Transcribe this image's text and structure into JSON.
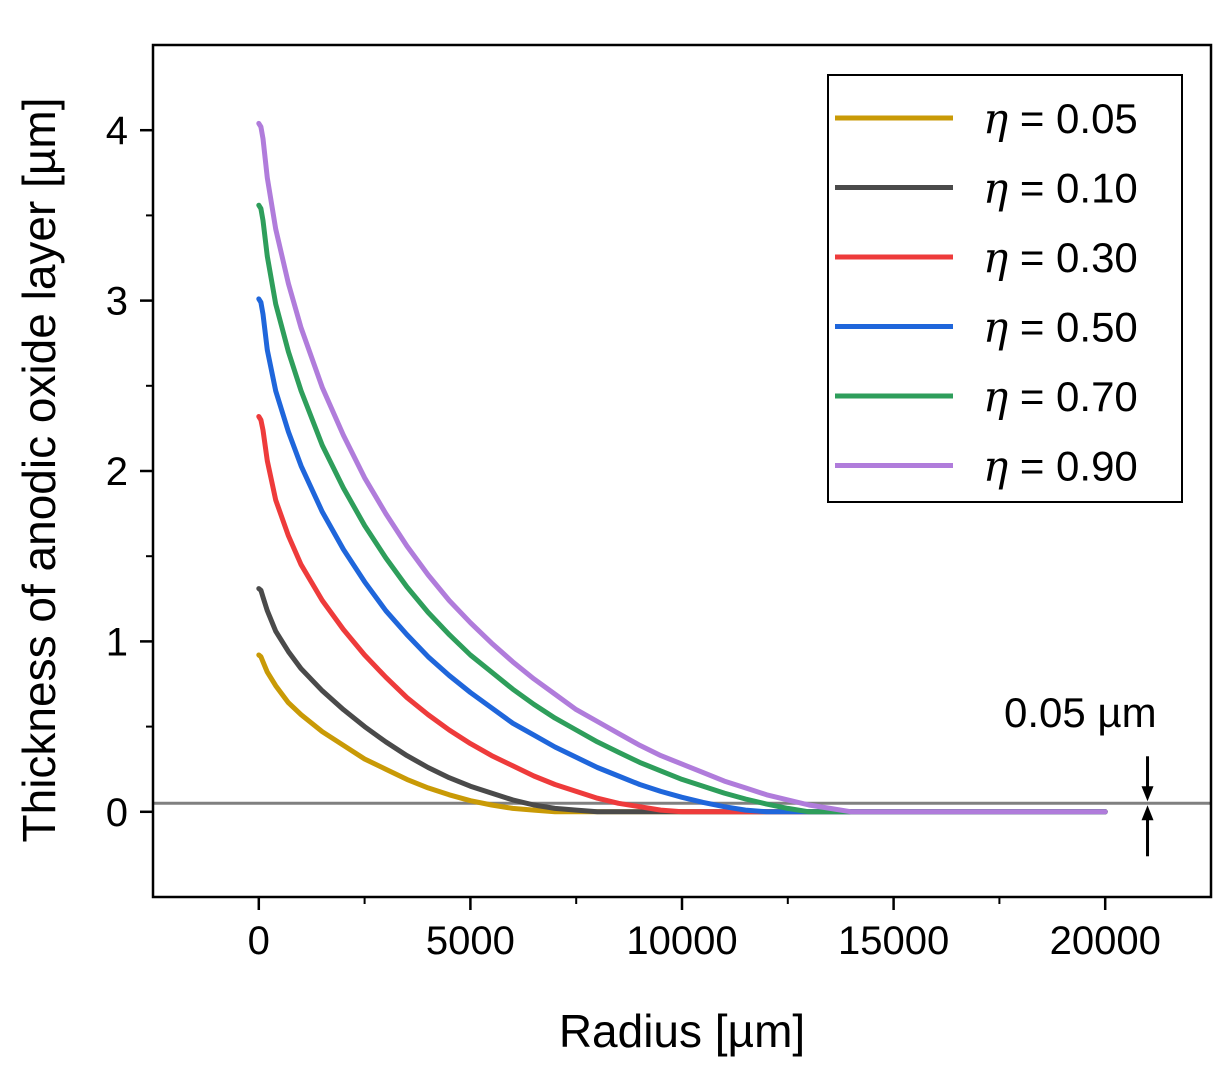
{
  "chart_data": {
    "type": "line",
    "title": "",
    "xlabel": "Radius [µm]",
    "ylabel": "Thickness of anodic oxide layer [µm]",
    "xlim": [
      -2500,
      22500
    ],
    "ylim": [
      -0.5,
      4.5
    ],
    "xticks": [
      0,
      5000,
      10000,
      15000,
      20000
    ],
    "xtick_labels": [
      "0",
      "5000",
      "10000",
      "15000",
      "20000"
    ],
    "yticks": [
      0,
      1,
      2,
      3,
      4
    ],
    "ytick_labels": [
      "0",
      "1",
      "2",
      "3",
      "4"
    ],
    "grid": false,
    "legend_position": "top-right",
    "reference_line": {
      "y": 0.05,
      "label": "0.05 µm",
      "arrow_x": 21000,
      "color": "#808080"
    },
    "series": [
      {
        "name": "η = 0.05",
        "symbol": "η",
        "value_label": " = 0.05",
        "color": "#C99A06",
        "points": [
          [
            0,
            0.92
          ],
          [
            50,
            0.91
          ],
          [
            100,
            0.88
          ],
          [
            200,
            0.82
          ],
          [
            400,
            0.74
          ],
          [
            700,
            0.64
          ],
          [
            1000,
            0.57
          ],
          [
            1500,
            0.47
          ],
          [
            2000,
            0.39
          ],
          [
            2500,
            0.31
          ],
          [
            3000,
            0.25
          ],
          [
            3500,
            0.19
          ],
          [
            4000,
            0.14
          ],
          [
            4500,
            0.1
          ],
          [
            5000,
            0.065
          ],
          [
            5500,
            0.04
          ],
          [
            6000,
            0.02
          ],
          [
            6500,
            0.01
          ],
          [
            7000,
            0.0
          ],
          [
            8000,
            0.0
          ],
          [
            10000,
            0.0
          ],
          [
            12000,
            0.0
          ],
          [
            14000,
            0.0
          ],
          [
            16000,
            0.0
          ],
          [
            18000,
            0.0
          ],
          [
            20000,
            0.0
          ]
        ]
      },
      {
        "name": "η = 0.10",
        "symbol": "η",
        "value_label": " = 0.10",
        "color": "#4A4A4A",
        "points": [
          [
            0,
            1.31
          ],
          [
            50,
            1.3
          ],
          [
            100,
            1.26
          ],
          [
            200,
            1.18
          ],
          [
            400,
            1.06
          ],
          [
            700,
            0.94
          ],
          [
            1000,
            0.84
          ],
          [
            1500,
            0.71
          ],
          [
            2000,
            0.6
          ],
          [
            2500,
            0.5
          ],
          [
            3000,
            0.41
          ],
          [
            3500,
            0.33
          ],
          [
            4000,
            0.26
          ],
          [
            4500,
            0.2
          ],
          [
            5000,
            0.15
          ],
          [
            5500,
            0.11
          ],
          [
            6000,
            0.07
          ],
          [
            6500,
            0.04
          ],
          [
            7000,
            0.02
          ],
          [
            7500,
            0.01
          ],
          [
            8000,
            0.0
          ],
          [
            10000,
            0.0
          ],
          [
            14000,
            0.0
          ],
          [
            20000,
            0.0
          ]
        ]
      },
      {
        "name": "η = 0.30",
        "symbol": "η",
        "value_label": " = 0.30",
        "color": "#EE3B3B",
        "points": [
          [
            0,
            2.32
          ],
          [
            50,
            2.3
          ],
          [
            100,
            2.24
          ],
          [
            200,
            2.06
          ],
          [
            400,
            1.83
          ],
          [
            700,
            1.62
          ],
          [
            1000,
            1.45
          ],
          [
            1500,
            1.24
          ],
          [
            2000,
            1.07
          ],
          [
            2500,
            0.92
          ],
          [
            3000,
            0.79
          ],
          [
            3500,
            0.67
          ],
          [
            4000,
            0.57
          ],
          [
            4500,
            0.48
          ],
          [
            5000,
            0.4
          ],
          [
            5500,
            0.33
          ],
          [
            6000,
            0.27
          ],
          [
            6500,
            0.21
          ],
          [
            7000,
            0.16
          ],
          [
            7500,
            0.12
          ],
          [
            8000,
            0.08
          ],
          [
            8500,
            0.05
          ],
          [
            9000,
            0.03
          ],
          [
            9500,
            0.01
          ],
          [
            10000,
            0.0
          ],
          [
            14000,
            0.0
          ],
          [
            20000,
            0.0
          ]
        ]
      },
      {
        "name": "η = 0.50",
        "symbol": "η",
        "value_label": " = 0.50",
        "color": "#1F66DB",
        "points": [
          [
            0,
            3.01
          ],
          [
            50,
            2.99
          ],
          [
            100,
            2.92
          ],
          [
            200,
            2.71
          ],
          [
            400,
            2.47
          ],
          [
            700,
            2.23
          ],
          [
            1000,
            2.03
          ],
          [
            1500,
            1.76
          ],
          [
            2000,
            1.54
          ],
          [
            2500,
            1.35
          ],
          [
            3000,
            1.18
          ],
          [
            3500,
            1.04
          ],
          [
            4000,
            0.91
          ],
          [
            4500,
            0.8
          ],
          [
            5000,
            0.7
          ],
          [
            5500,
            0.61
          ],
          [
            6000,
            0.52
          ],
          [
            6500,
            0.45
          ],
          [
            7000,
            0.38
          ],
          [
            7500,
            0.32
          ],
          [
            8000,
            0.26
          ],
          [
            8500,
            0.21
          ],
          [
            9000,
            0.16
          ],
          [
            9500,
            0.12
          ],
          [
            10000,
            0.085
          ],
          [
            10500,
            0.055
          ],
          [
            11000,
            0.03
          ],
          [
            11500,
            0.01
          ],
          [
            12000,
            0.0
          ],
          [
            14000,
            0.0
          ],
          [
            20000,
            0.0
          ]
        ]
      },
      {
        "name": "η = 0.70",
        "symbol": "η",
        "value_label": " = 0.70",
        "color": "#2E9E5B",
        "points": [
          [
            0,
            3.56
          ],
          [
            50,
            3.54
          ],
          [
            100,
            3.47
          ],
          [
            200,
            3.26
          ],
          [
            400,
            2.98
          ],
          [
            700,
            2.7
          ],
          [
            1000,
            2.47
          ],
          [
            1500,
            2.15
          ],
          [
            2000,
            1.9
          ],
          [
            2500,
            1.68
          ],
          [
            3000,
            1.49
          ],
          [
            3500,
            1.32
          ],
          [
            4000,
            1.17
          ],
          [
            4500,
            1.04
          ],
          [
            5000,
            0.92
          ],
          [
            5500,
            0.82
          ],
          [
            6000,
            0.72
          ],
          [
            6500,
            0.63
          ],
          [
            7000,
            0.55
          ],
          [
            7500,
            0.48
          ],
          [
            8000,
            0.41
          ],
          [
            8500,
            0.35
          ],
          [
            9000,
            0.29
          ],
          [
            9500,
            0.24
          ],
          [
            10000,
            0.19
          ],
          [
            10500,
            0.15
          ],
          [
            11000,
            0.11
          ],
          [
            11500,
            0.075
          ],
          [
            12000,
            0.045
          ],
          [
            12500,
            0.02
          ],
          [
            13000,
            0.0
          ],
          [
            14000,
            0.0
          ],
          [
            20000,
            0.0
          ]
        ]
      },
      {
        "name": "η = 0.90",
        "symbol": "η",
        "value_label": " = 0.90",
        "color": "#B07CDB",
        "points": [
          [
            0,
            4.04
          ],
          [
            50,
            4.02
          ],
          [
            100,
            3.95
          ],
          [
            200,
            3.72
          ],
          [
            400,
            3.42
          ],
          [
            700,
            3.1
          ],
          [
            1000,
            2.84
          ],
          [
            1500,
            2.49
          ],
          [
            2000,
            2.21
          ],
          [
            2500,
            1.96
          ],
          [
            3000,
            1.75
          ],
          [
            3500,
            1.56
          ],
          [
            4000,
            1.39
          ],
          [
            4500,
            1.24
          ],
          [
            5000,
            1.11
          ],
          [
            5500,
            0.99
          ],
          [
            6000,
            0.88
          ],
          [
            6500,
            0.78
          ],
          [
            7000,
            0.69
          ],
          [
            7500,
            0.6
          ],
          [
            8000,
            0.53
          ],
          [
            8500,
            0.46
          ],
          [
            9000,
            0.39
          ],
          [
            9500,
            0.33
          ],
          [
            10000,
            0.28
          ],
          [
            10500,
            0.23
          ],
          [
            11000,
            0.18
          ],
          [
            11500,
            0.14
          ],
          [
            12000,
            0.1
          ],
          [
            12500,
            0.07
          ],
          [
            13000,
            0.04
          ],
          [
            13500,
            0.02
          ],
          [
            14000,
            0.0
          ],
          [
            16000,
            0.0
          ],
          [
            20000,
            0.0
          ]
        ]
      }
    ]
  }
}
